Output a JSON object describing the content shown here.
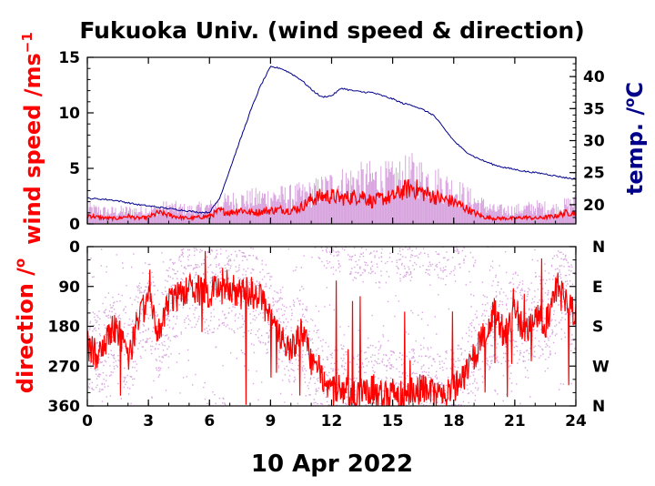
{
  "chart_data": [
    {
      "type": "line",
      "title": "Fukuoka Univ. (wind speed & direction)",
      "xlabel": "10 Apr 2022",
      "ylabel": "wind speed /ms",
      "ylabel_sup": "−1",
      "y2label": "temp. /",
      "y2label_sup": "o",
      "y2label_unit": "C",
      "x_ticks": [
        "0",
        "3",
        "6",
        "9",
        "12",
        "15",
        "18",
        "21",
        "24"
      ],
      "xlim": [
        0,
        24
      ],
      "ylim": [
        0,
        15
      ],
      "y_ticks": [
        "0",
        "5",
        "10",
        "15"
      ],
      "y2lim": [
        17,
        43
      ],
      "y2_ticks": [
        "20",
        "25",
        "30",
        "35",
        "40"
      ],
      "grid": false,
      "colors": {
        "wind_mean": "#ff0000",
        "wind_range": "#d9a6e0",
        "temperature": "#00008b"
      },
      "series": [
        {
          "axis": "y",
          "role": "wind speed mean",
          "x": [
            0,
            0.5,
            1,
            1.5,
            2,
            2.5,
            3,
            3.5,
            4,
            4.5,
            5,
            5.5,
            6,
            6.5,
            7,
            7.5,
            8,
            8.5,
            9,
            9.5,
            10,
            10.5,
            11,
            11.5,
            12,
            12.5,
            13,
            13.5,
            14,
            14.5,
            15,
            15.5,
            16,
            16.5,
            17,
            17.5,
            18,
            18.5,
            19,
            19.5,
            20,
            20.5,
            21,
            21.5,
            22,
            22.5,
            23,
            23.5,
            24
          ],
          "values": [
            0.8,
            0.6,
            0.5,
            0.5,
            0.7,
            0.5,
            0.6,
            1.0,
            0.8,
            0.6,
            0.5,
            0.6,
            0.7,
            1.2,
            1.0,
            1.3,
            1.0,
            1.1,
            1.2,
            1.3,
            1.2,
            1.5,
            2.2,
            2.5,
            2.5,
            2.3,
            2.4,
            2.6,
            2.0,
            2.3,
            2.4,
            3.0,
            3.3,
            2.8,
            2.5,
            2.2,
            2.0,
            1.5,
            1.0,
            0.6,
            0.5,
            0.5,
            0.5,
            0.6,
            0.5,
            0.6,
            0.7,
            1.0,
            1.0
          ]
        },
        {
          "axis": "y",
          "role": "wind speed max",
          "x": [
            0,
            1,
            2,
            3,
            4,
            5,
            6,
            7,
            8,
            9,
            10,
            11,
            12,
            13,
            14,
            15,
            16,
            17,
            18,
            19,
            20,
            21,
            22,
            23,
            24
          ],
          "values": [
            2.0,
            1.6,
            1.7,
            1.8,
            2.2,
            1.8,
            2.2,
            3.0,
            3.2,
            3.5,
            3.6,
            4.0,
            5.0,
            5.5,
            5.8,
            5.7,
            6.5,
            5.5,
            4.5,
            3.0,
            1.8,
            1.8,
            2.2,
            2.0,
            2.8
          ]
        },
        {
          "axis": "y2",
          "role": "temperature",
          "x": [
            0,
            0.5,
            1,
            1.5,
            2,
            2.5,
            3,
            3.5,
            4,
            4.5,
            5,
            5.5,
            6,
            6.5,
            7,
            7.5,
            8,
            8.5,
            9,
            9.5,
            10,
            10.5,
            11,
            11.5,
            12,
            12.5,
            13,
            13.5,
            14,
            14.5,
            15,
            15.5,
            16,
            16.5,
            17,
            17.5,
            18,
            18.5,
            19,
            19.5,
            20,
            20.5,
            21,
            21.5,
            22,
            22.5,
            23,
            23.5,
            24
          ],
          "values": [
            21.0,
            20.9,
            20.8,
            20.6,
            20.3,
            20.0,
            19.8,
            19.6,
            19.4,
            19.2,
            19.0,
            18.8,
            18.8,
            21.0,
            25.5,
            30.0,
            34.5,
            38.5,
            41.5,
            41.3,
            40.5,
            39.5,
            38.0,
            36.8,
            37.0,
            38.2,
            37.8,
            37.6,
            37.5,
            37.0,
            36.5,
            35.8,
            35.5,
            34.8,
            34.0,
            32.0,
            30.0,
            28.5,
            27.5,
            26.8,
            26.2,
            25.8,
            25.5,
            25.2,
            25.0,
            24.8,
            24.5,
            24.2,
            24.0
          ]
        }
      ]
    },
    {
      "type": "scatter",
      "ylabel": "direction /",
      "ylabel_sup": "o",
      "xlabel": "10 Apr 2022",
      "x_ticks": [
        "0",
        "3",
        "6",
        "9",
        "12",
        "15",
        "18",
        "21",
        "24"
      ],
      "xlim": [
        0,
        24
      ],
      "ylim": [
        360,
        0
      ],
      "y_ticks": [
        "0",
        "90",
        "180",
        "270",
        "360"
      ],
      "y2_ticks": [
        "N",
        "E",
        "S",
        "W",
        "N"
      ],
      "grid": false,
      "colors": {
        "direction_mean": "#ff0000",
        "direction_samples": "#d9a6e0"
      },
      "series": [
        {
          "role": "direction mean",
          "x": [
            0,
            0.5,
            1,
            1.5,
            2,
            2.5,
            3,
            3.5,
            4,
            4.5,
            5,
            5.5,
            6,
            6.5,
            7,
            7.5,
            8,
            8.5,
            9,
            9.5,
            10,
            10.5,
            11,
            11.5,
            12,
            12.5,
            13,
            13.5,
            14,
            14.5,
            15,
            15.5,
            16,
            16.5,
            17,
            17.5,
            18,
            18.5,
            19,
            19.5,
            20,
            20.5,
            21,
            21.5,
            22,
            22.5,
            23,
            23.5,
            24
          ],
          "values": [
            220,
            250,
            200,
            180,
            260,
            160,
            120,
            200,
            130,
            110,
            90,
            100,
            110,
            80,
            90,
            110,
            100,
            120,
            160,
            200,
            240,
            180,
            260,
            300,
            330,
            320,
            340,
            330,
            320,
            340,
            330,
            340,
            330,
            320,
            330,
            340,
            320,
            300,
            250,
            200,
            150,
            200,
            140,
            200,
            150,
            180,
            100,
            120,
            160
          ]
        }
      ]
    }
  ]
}
